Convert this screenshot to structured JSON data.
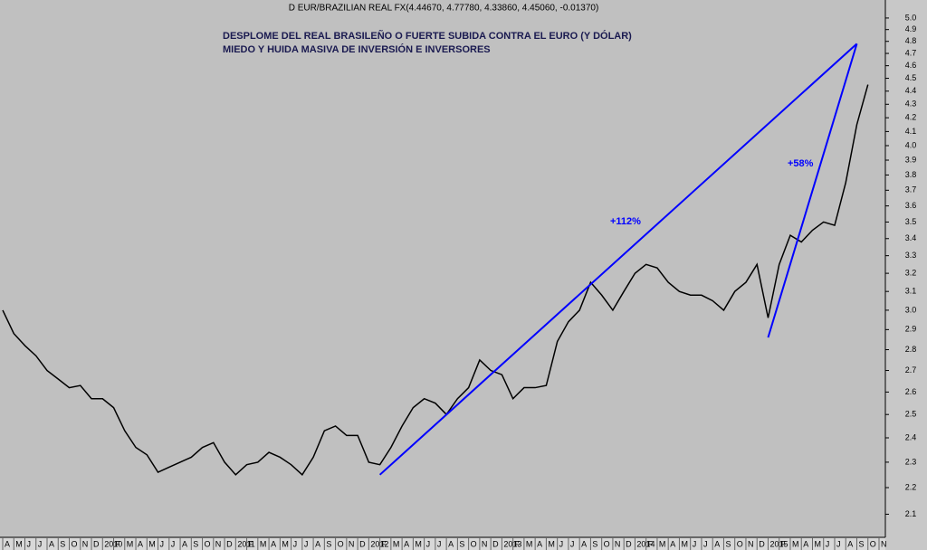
{
  "chart_data": {
    "type": "line",
    "header": "D EUR/BRAZILIAN REAL FX(4.44670, 4.77780, 4.33860, 4.45060, -0.01370)",
    "title": "DESPLOME DEL REAL BRASILEÑO O FUERTE  SUBIDA CONTRA EL EURO (Y DÓLAR)",
    "subtitle": "MIEDO Y HUIDA MASIVA DE INVERSIÓN E INVERSORES",
    "log_y": true,
    "xlim": [
      "2009-04",
      "2015-11"
    ],
    "ylim": [
      2.02,
      5.16
    ],
    "yticks": [
      2.1,
      2.2,
      2.3,
      2.4,
      2.5,
      2.6,
      2.7,
      2.8,
      2.9,
      {
        "value": 3,
        "label": "3.0"
      },
      3.1,
      3.2,
      3.3,
      3.4,
      3.5,
      3.6,
      3.7,
      3.8,
      3.9,
      {
        "value": 4,
        "label": "4.0"
      },
      4.1,
      4.2,
      4.3,
      4.4,
      4.5,
      4.6,
      4.7,
      4.8,
      4.9,
      {
        "value": 5,
        "label": "5.0"
      }
    ],
    "xticks": [
      {
        "value": "2009-04",
        "label": "A"
      },
      {
        "value": "2009-05",
        "label": "M"
      },
      {
        "value": "2009-06",
        "label": "J"
      },
      {
        "value": "2009-07",
        "label": "J"
      },
      {
        "value": "2009-08",
        "label": "A"
      },
      {
        "value": "2009-09",
        "label": "S"
      },
      {
        "value": "2009-10",
        "label": "O"
      },
      {
        "value": "2009-11",
        "label": "N"
      },
      {
        "value": "2009-12",
        "label": "D"
      },
      {
        "value": "2010-01",
        "label": "2010"
      },
      {
        "value": "2010-02",
        "label": "F"
      },
      {
        "value": "2010-03",
        "label": "M"
      },
      {
        "value": "2010-04",
        "label": "A"
      },
      {
        "value": "2010-05",
        "label": "M"
      },
      {
        "value": "2010-06",
        "label": "J"
      },
      {
        "value": "2010-07",
        "label": "J"
      },
      {
        "value": "2010-08",
        "label": "A"
      },
      {
        "value": "2010-09",
        "label": "S"
      },
      {
        "value": "2010-10",
        "label": "O"
      },
      {
        "value": "2010-11",
        "label": "N"
      },
      {
        "value": "2010-12",
        "label": "D"
      },
      {
        "value": "2011-01",
        "label": "2011"
      },
      {
        "value": "2011-02",
        "label": "F"
      },
      {
        "value": "2011-03",
        "label": "M"
      },
      {
        "value": "2011-04",
        "label": "A"
      },
      {
        "value": "2011-05",
        "label": "M"
      },
      {
        "value": "2011-06",
        "label": "J"
      },
      {
        "value": "2011-07",
        "label": "J"
      },
      {
        "value": "2011-08",
        "label": "A"
      },
      {
        "value": "2011-09",
        "label": "S"
      },
      {
        "value": "2011-10",
        "label": "O"
      },
      {
        "value": "2011-11",
        "label": "N"
      },
      {
        "value": "2011-12",
        "label": "D"
      },
      {
        "value": "2012-01",
        "label": "2012"
      },
      {
        "value": "2012-02",
        "label": "F"
      },
      {
        "value": "2012-03",
        "label": "M"
      },
      {
        "value": "2012-04",
        "label": "A"
      },
      {
        "value": "2012-05",
        "label": "M"
      },
      {
        "value": "2012-06",
        "label": "J"
      },
      {
        "value": "2012-07",
        "label": "J"
      },
      {
        "value": "2012-08",
        "label": "A"
      },
      {
        "value": "2012-09",
        "label": "S"
      },
      {
        "value": "2012-10",
        "label": "O"
      },
      {
        "value": "2012-11",
        "label": "N"
      },
      {
        "value": "2012-12",
        "label": "D"
      },
      {
        "value": "2013-01",
        "label": "2013"
      },
      {
        "value": "2013-02",
        "label": "F"
      },
      {
        "value": "2013-03",
        "label": "M"
      },
      {
        "value": "2013-04",
        "label": "A"
      },
      {
        "value": "2013-05",
        "label": "M"
      },
      {
        "value": "2013-06",
        "label": "J"
      },
      {
        "value": "2013-07",
        "label": "J"
      },
      {
        "value": "2013-08",
        "label": "A"
      },
      {
        "value": "2013-09",
        "label": "S"
      },
      {
        "value": "2013-10",
        "label": "O"
      },
      {
        "value": "2013-11",
        "label": "N"
      },
      {
        "value": "2013-12",
        "label": "D"
      },
      {
        "value": "2014-01",
        "label": "2014"
      },
      {
        "value": "2014-02",
        "label": "F"
      },
      {
        "value": "2014-03",
        "label": "M"
      },
      {
        "value": "2014-04",
        "label": "A"
      },
      {
        "value": "2014-05",
        "label": "M"
      },
      {
        "value": "2014-06",
        "label": "J"
      },
      {
        "value": "2014-07",
        "label": "J"
      },
      {
        "value": "2014-08",
        "label": "A"
      },
      {
        "value": "2014-09",
        "label": "S"
      },
      {
        "value": "2014-10",
        "label": "O"
      },
      {
        "value": "2014-11",
        "label": "N"
      },
      {
        "value": "2014-12",
        "label": "D"
      },
      {
        "value": "2015-01",
        "label": "2015"
      },
      {
        "value": "2015-02",
        "label": "F"
      },
      {
        "value": "2015-03",
        "label": "M"
      },
      {
        "value": "2015-04",
        "label": "A"
      },
      {
        "value": "2015-05",
        "label": "M"
      },
      {
        "value": "2015-06",
        "label": "J"
      },
      {
        "value": "2015-07",
        "label": "J"
      },
      {
        "value": "2015-08",
        "label": "A"
      },
      {
        "value": "2015-09",
        "label": "S"
      },
      {
        "value": "2015-10",
        "label": "O"
      },
      {
        "value": "2015-11",
        "label": "N"
      }
    ],
    "x": [
      "2009-04",
      "2009-05",
      "2009-06",
      "2009-07",
      "2009-08",
      "2009-09",
      "2009-10",
      "2009-11",
      "2009-12",
      "2010-01",
      "2010-02",
      "2010-03",
      "2010-04",
      "2010-05",
      "2010-06",
      "2010-07",
      "2010-08",
      "2010-09",
      "2010-10",
      "2010-11",
      "2010-12",
      "2011-01",
      "2011-02",
      "2011-03",
      "2011-04",
      "2011-05",
      "2011-06",
      "2011-07",
      "2011-08",
      "2011-09",
      "2011-10",
      "2011-11",
      "2011-12",
      "2012-01",
      "2012-02",
      "2012-03",
      "2012-04",
      "2012-05",
      "2012-06",
      "2012-07",
      "2012-08",
      "2012-09",
      "2012-10",
      "2012-11",
      "2012-12",
      "2013-01",
      "2013-02",
      "2013-03",
      "2013-04",
      "2013-05",
      "2013-06",
      "2013-07",
      "2013-08",
      "2013-09",
      "2013-10",
      "2013-11",
      "2013-12",
      "2014-01",
      "2014-02",
      "2014-03",
      "2014-04",
      "2014-05",
      "2014-06",
      "2014-07",
      "2014-08",
      "2014-09",
      "2014-10",
      "2014-11",
      "2014-12",
      "2015-01",
      "2015-02",
      "2015-03",
      "2015-04",
      "2015-05",
      "2015-06",
      "2015-07",
      "2015-08",
      "2015-09",
      "2015-10"
    ],
    "series": [
      {
        "color": "#000000",
        "values": [
          3.0,
          2.88,
          2.82,
          2.77,
          2.7,
          2.66,
          2.62,
          2.63,
          2.57,
          2.57,
          2.53,
          2.43,
          2.36,
          2.33,
          2.26,
          2.28,
          2.3,
          2.32,
          2.36,
          2.38,
          2.3,
          2.25,
          2.29,
          2.3,
          2.34,
          2.32,
          2.29,
          2.25,
          2.32,
          2.43,
          2.45,
          2.41,
          2.41,
          2.3,
          2.29,
          2.36,
          2.45,
          2.53,
          2.57,
          2.55,
          2.5,
          2.57,
          2.62,
          2.75,
          2.7,
          2.68,
          2.57,
          2.62,
          2.62,
          2.63,
          2.84,
          2.94,
          3.0,
          3.15,
          3.08,
          3.0,
          3.1,
          3.2,
          3.25,
          3.23,
          3.15,
          3.1,
          3.08,
          3.08,
          3.05,
          3.0,
          3.1,
          3.15,
          3.25,
          2.96,
          3.25,
          3.42,
          3.38,
          3.45,
          3.5,
          3.48,
          3.75,
          4.15,
          4.45
        ]
      }
    ],
    "trend_lines": [
      {
        "color": "#0000ff",
        "x": [
          "2012-02",
          "2015-09"
        ],
        "values": [
          2.25,
          4.78
        ]
      },
      {
        "color": "#0000ff",
        "x": [
          "2015-01",
          "2015-09"
        ],
        "values": [
          2.86,
          4.78
        ]
      }
    ],
    "annotations": [
      "+112%",
      "+58%"
    ]
  }
}
